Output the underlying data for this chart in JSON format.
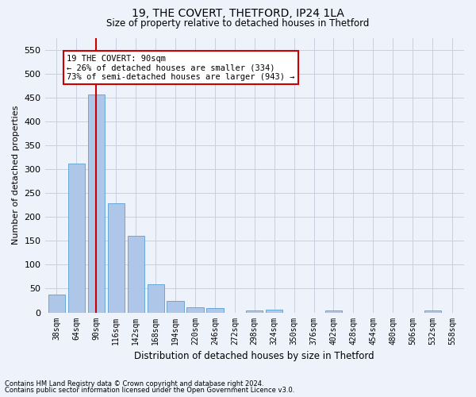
{
  "title1": "19, THE COVERT, THETFORD, IP24 1LA",
  "title2": "Size of property relative to detached houses in Thetford",
  "xlabel": "Distribution of detached houses by size in Thetford",
  "ylabel": "Number of detached properties",
  "footnote1": "Contains HM Land Registry data © Crown copyright and database right 2024.",
  "footnote2": "Contains public sector information licensed under the Open Government Licence v3.0.",
  "bar_labels": [
    "38sqm",
    "64sqm",
    "90sqm",
    "116sqm",
    "142sqm",
    "168sqm",
    "194sqm",
    "220sqm",
    "246sqm",
    "272sqm",
    "298sqm",
    "324sqm",
    "350sqm",
    "376sqm",
    "402sqm",
    "428sqm",
    "454sqm",
    "480sqm",
    "506sqm",
    "532sqm",
    "558sqm"
  ],
  "bar_values": [
    38,
    311,
    456,
    228,
    161,
    59,
    25,
    11,
    9,
    0,
    5,
    6,
    0,
    0,
    5,
    0,
    0,
    0,
    0,
    5,
    0
  ],
  "bar_color": "#aec6e8",
  "bar_edge_color": "#5a9fd4",
  "highlight_index": 2,
  "highlight_color": "#cc0000",
  "ylim": [
    0,
    575
  ],
  "yticks": [
    0,
    50,
    100,
    150,
    200,
    250,
    300,
    350,
    400,
    450,
    500,
    550
  ],
  "annotation_text": "19 THE COVERT: 90sqm\n← 26% of detached houses are smaller (334)\n73% of semi-detached houses are larger (943) →",
  "annotation_box_color": "#ffffff",
  "annotation_box_edge": "#cc0000",
  "bg_color": "#eef2fb",
  "grid_color": "#c8cfe0"
}
